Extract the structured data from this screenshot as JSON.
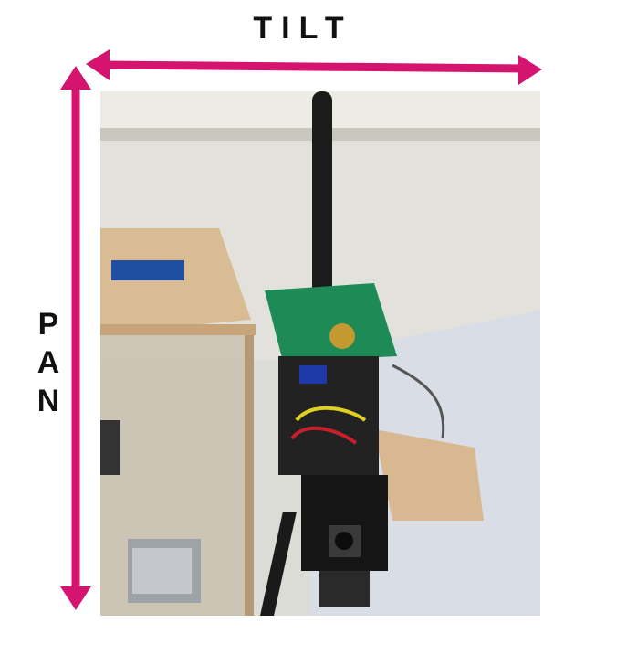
{
  "labels": {
    "tilt": "TILT",
    "pan": [
      "P",
      "A",
      "N"
    ]
  },
  "colors": {
    "arrow": "#d4146f",
    "label": "#111111"
  },
  "photo": {
    "description_icon": "pan-tilt-antenna-module-photo"
  }
}
